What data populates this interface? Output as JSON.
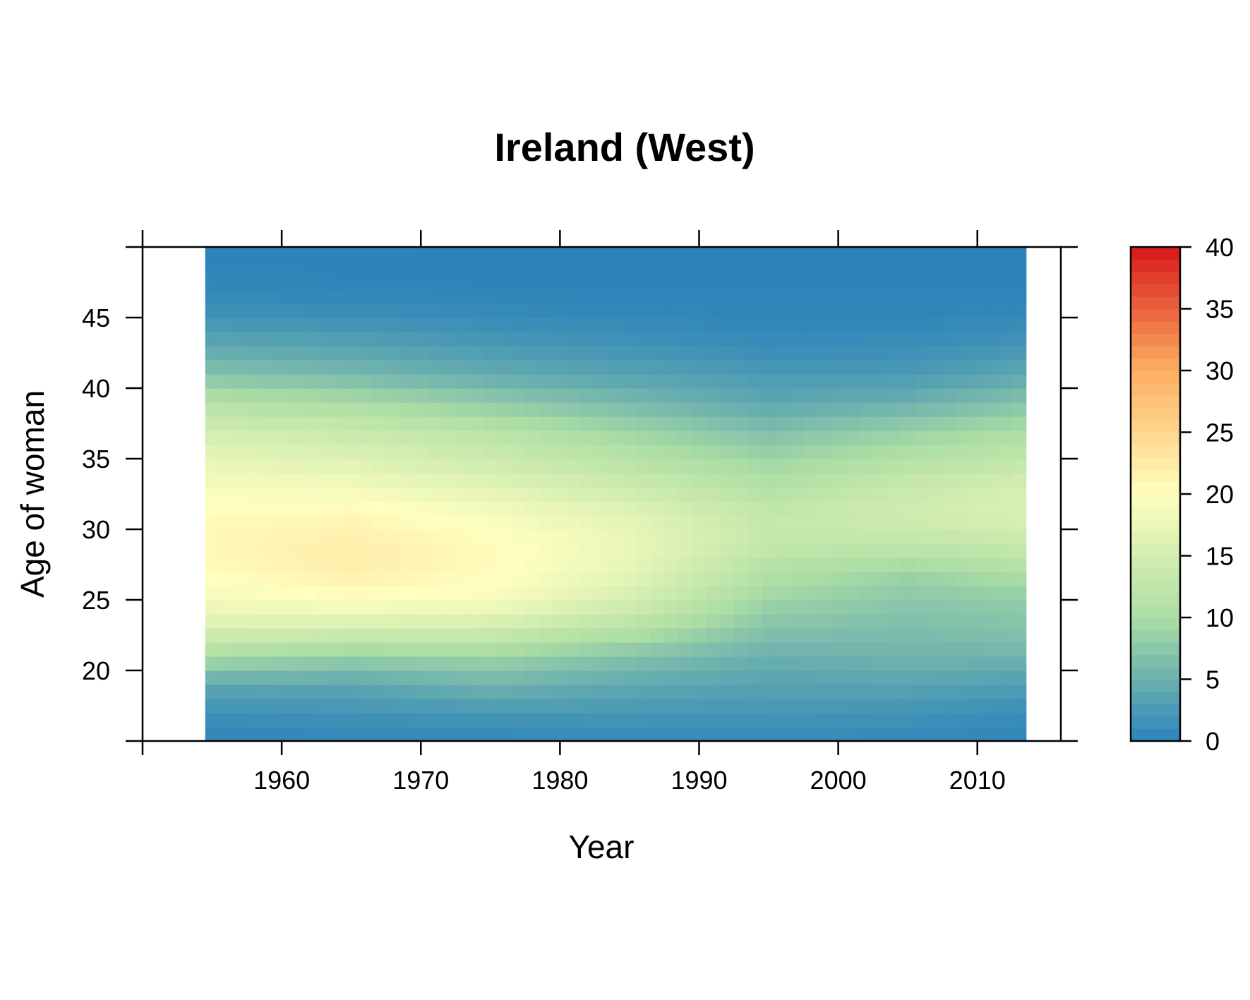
{
  "chart_data": {
    "type": "heatmap",
    "title": "Ireland (West)",
    "xlabel": "Year",
    "ylabel": "Age of woman",
    "x_range": [
      1954.5,
      2013.5
    ],
    "xlim": [
      1950,
      2016
    ],
    "ylim": [
      15,
      50
    ],
    "y_range": [
      15,
      50
    ],
    "x_ticks": [
      1960,
      1970,
      1980,
      1990,
      2000,
      2010
    ],
    "y_ticks": [
      20,
      25,
      30,
      35,
      40,
      45
    ],
    "z_range": [
      0,
      40
    ],
    "colorbar_ticks": [
      0,
      5,
      10,
      15,
      20,
      25,
      30,
      35,
      40
    ],
    "colormap": [
      "#2b83ba",
      "#abdda4",
      "#ffffbf",
      "#fdae61",
      "#d7191c"
    ],
    "grid": false,
    "legend": "right",
    "age_profiles": [
      {
        "age": 15,
        "values": [
          0.4,
          0.4,
          0.5,
          0.6,
          0.7,
          0.6,
          0.4
        ]
      },
      {
        "age": 17,
        "values": [
          1.5,
          1.8,
          2.2,
          2.3,
          2.0,
          1.8,
          1.2
        ]
      },
      {
        "age": 19,
        "values": [
          4.0,
          4.0,
          5.5,
          4.2,
          3.5,
          3.6,
          3.0
        ]
      },
      {
        "age": 21,
        "values": [
          10.0,
          8.5,
          9.0,
          7.0,
          5.0,
          5.5,
          5.5
        ]
      },
      {
        "age": 23,
        "values": [
          15.5,
          15.0,
          14.5,
          11.5,
          7.0,
          6.5,
          7.0
        ]
      },
      {
        "age": 25,
        "values": [
          18.5,
          20.0,
          19.0,
          15.0,
          9.0,
          7.5,
          8.0
        ]
      },
      {
        "age": 27,
        "values": [
          20.5,
          22.0,
          20.5,
          17.0,
          11.0,
          9.0,
          10.5
        ]
      },
      {
        "age": 29,
        "values": [
          21.0,
          22.0,
          20.5,
          17.5,
          13.0,
          12.5,
          13.5
        ]
      },
      {
        "age": 31,
        "values": [
          20.5,
          21.0,
          19.0,
          16.5,
          13.0,
          14.5,
          15.5
        ]
      },
      {
        "age": 33,
        "values": [
          19.0,
          18.5,
          16.5,
          14.0,
          11.0,
          13.5,
          15.0
        ]
      },
      {
        "age": 35,
        "values": [
          17.0,
          16.0,
          14.0,
          11.5,
          9.0,
          11.0,
          12.5
        ]
      },
      {
        "age": 37,
        "values": [
          14.5,
          13.5,
          11.5,
          9.0,
          6.5,
          8.5,
          10.0
        ]
      },
      {
        "age": 39,
        "values": [
          11.0,
          10.0,
          8.0,
          6.0,
          4.0,
          5.0,
          7.0
        ]
      },
      {
        "age": 41,
        "values": [
          7.0,
          6.0,
          4.5,
          3.5,
          2.5,
          2.5,
          4.0
        ]
      },
      {
        "age": 43,
        "values": [
          4.0,
          3.5,
          2.5,
          1.8,
          1.0,
          1.2,
          2.0
        ]
      },
      {
        "age": 45,
        "values": [
          1.8,
          1.5,
          1.0,
          0.6,
          0.4,
          0.4,
          0.6
        ]
      },
      {
        "age": 47,
        "values": [
          0.5,
          0.3,
          0.2,
          0.1,
          0.1,
          0.1,
          0.1
        ]
      },
      {
        "age": 49,
        "values": [
          0.1,
          0.1,
          0.0,
          0.0,
          0.0,
          0.0,
          0.0
        ]
      }
    ],
    "profile_years": [
      1955,
      1965,
      1975,
      1985,
      1995,
      2005,
      2013
    ]
  }
}
